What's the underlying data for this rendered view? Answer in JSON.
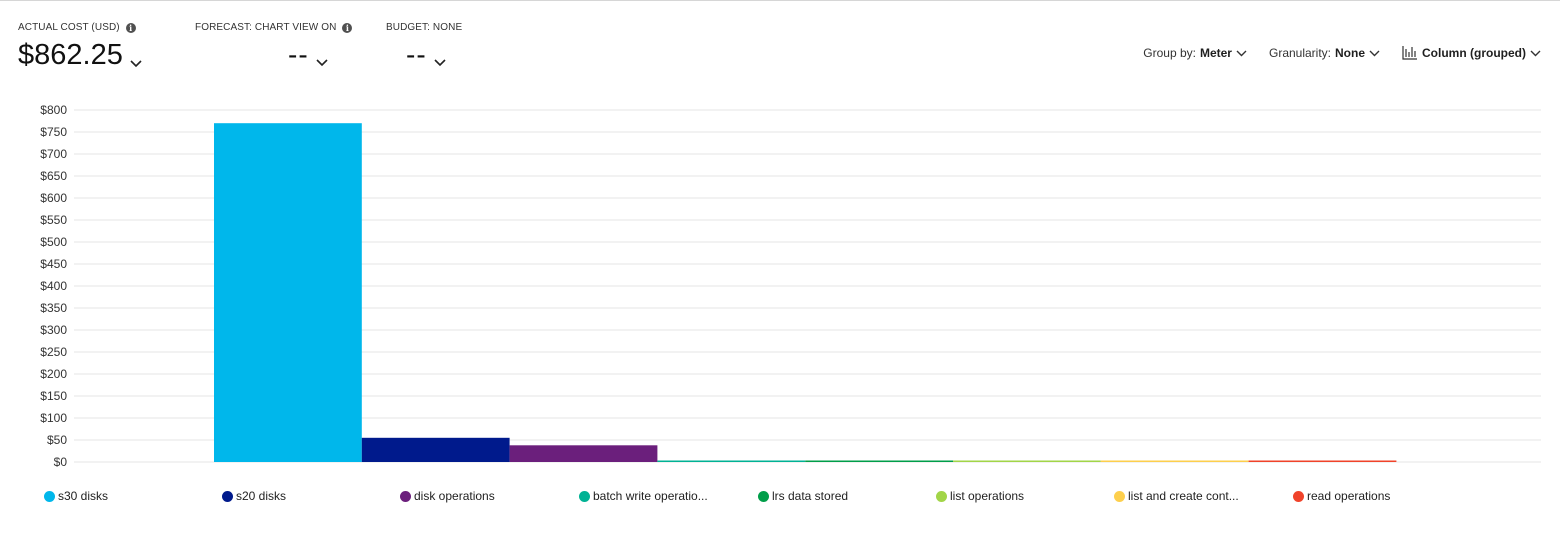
{
  "kpis": {
    "actual": {
      "label": "ACTUAL COST (USD)",
      "value": "$862.25"
    },
    "forecast": {
      "label": "FORECAST: CHART VIEW ON",
      "value": "--"
    },
    "budget": {
      "label": "BUDGET: NONE",
      "value": "--"
    }
  },
  "controls": {
    "group_by_label": "Group by:",
    "group_by_value": "Meter",
    "granularity_label": "Granularity:",
    "granularity_value": "None",
    "chart_type_value": "Column (grouped)"
  },
  "colors": {
    "gridline": "#e6e6e6",
    "text": "#333333"
  },
  "icons": [
    "info-icon",
    "chevron-down-icon",
    "column-chart-icon"
  ],
  "chart_data": {
    "type": "bar",
    "y_ticks": [
      "$0",
      "$50",
      "$100",
      "$150",
      "$200",
      "$250",
      "$300",
      "$350",
      "$400",
      "$450",
      "$500",
      "$550",
      "$600",
      "$650",
      "$700",
      "$750",
      "$800"
    ],
    "ylim": [
      0,
      800
    ],
    "grid": true,
    "legend_position": "bottom",
    "series": [
      {
        "name": "s30 disks",
        "value": 770,
        "color": "#00b7eb"
      },
      {
        "name": "s20 disks",
        "value": 55,
        "color": "#001a8c"
      },
      {
        "name": "disk operations",
        "value": 38,
        "color": "#6b1f7c"
      },
      {
        "name": "batch write operatio...",
        "value": 1,
        "color": "#00b294"
      },
      {
        "name": "lrs data stored",
        "value": 1,
        "color": "#009e49"
      },
      {
        "name": "list operations",
        "value": 0.5,
        "color": "#a2d548"
      },
      {
        "name": "list and create cont...",
        "value": 0.5,
        "color": "#fdcf4c"
      },
      {
        "name": "read operations",
        "value": 0.5,
        "color": "#f0432a"
      }
    ]
  }
}
